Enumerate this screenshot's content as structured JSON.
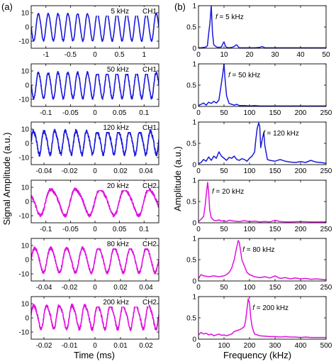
{
  "figure": {
    "panel_a_label": "(a)",
    "panel_b_label": "(b)",
    "left_ylabel": "Signal Amplitude (a.u.)",
    "left_xlabel": "Time (ms)",
    "right_ylabel": "Amplitude (a.u.)",
    "right_xlabel": "Frequency (kHz)",
    "colors": {
      "CH1": "#1a1adb",
      "CH2": "#e010e0"
    }
  },
  "chart_data": [
    {
      "panel": "a1",
      "type": "line",
      "channel": "CH1",
      "freq_label": "5 kHz",
      "channel_label": "CH1",
      "xlim": [
        -1.3,
        1.3
      ],
      "ylim": [
        -15,
        15
      ],
      "xticks": [
        -1,
        -0.5,
        0,
        0.5,
        1
      ],
      "xtick_labels": [
        "-1",
        "-0.5",
        "0",
        "0.5",
        "1"
      ],
      "yticks": [
        -10,
        0,
        10
      ],
      "ytick_labels": [
        "-10",
        "0",
        "10"
      ],
      "signal": {
        "frequency_khz": 5,
        "amplitude": 9.5,
        "offset": 0,
        "noise": 0.5,
        "harmonic": 0.05
      }
    },
    {
      "panel": "a2",
      "type": "line",
      "channel": "CH1",
      "freq_label": "50 kHz",
      "channel_label": "CH1",
      "xlim": [
        -0.13,
        0.13
      ],
      "ylim": [
        -15,
        15
      ],
      "xticks": [
        -0.1,
        -0.05,
        0,
        0.05,
        0.1
      ],
      "xtick_labels": [
        "-0.1",
        "-0.05",
        "0",
        "0.05",
        "0.1"
      ],
      "yticks": [
        -10,
        0,
        10
      ],
      "ytick_labels": [
        "-10",
        "0",
        "10"
      ],
      "signal": {
        "frequency_khz": 50,
        "amplitude": 9,
        "offset": 0,
        "noise": 0.9,
        "harmonic": 0.05
      }
    },
    {
      "panel": "a3",
      "type": "line",
      "channel": "CH1",
      "freq_label": "120 kHz",
      "channel_label": "CH1",
      "xlim": [
        -0.05,
        0.05
      ],
      "ylim": [
        -15,
        15
      ],
      "xticks": [
        -0.04,
        -0.02,
        0,
        0.02,
        0.04
      ],
      "xtick_labels": [
        "-0.04",
        "-0.02",
        "0",
        "0.02",
        "0.04"
      ],
      "yticks": [
        -10,
        0,
        10
      ],
      "ytick_labels": [
        "-10",
        "0",
        "10"
      ],
      "signal": {
        "frequency_khz": 120,
        "amplitude": 8,
        "offset": 1,
        "noise": 1.3,
        "harmonic": 0.15
      }
    },
    {
      "panel": "a4",
      "type": "line",
      "channel": "CH2",
      "freq_label": "20 kHz",
      "channel_label": "CH2",
      "xlim": [
        -0.13,
        0.13
      ],
      "ylim": [
        -15,
        15
      ],
      "xticks": [
        -0.1,
        -0.05,
        0,
        0.05,
        0.1
      ],
      "xtick_labels": [
        "-0.1",
        "-0.05",
        "0",
        "0.05",
        "0.1"
      ],
      "yticks": [
        -10,
        0,
        10
      ],
      "ytick_labels": [
        "-10",
        "0",
        "10"
      ],
      "signal": {
        "frequency_khz": 20,
        "amplitude": 9,
        "offset": 0,
        "noise": 1.1,
        "harmonic": 0.15
      }
    },
    {
      "panel": "a5",
      "type": "line",
      "channel": "CH2",
      "freq_label": "80 kHz",
      "channel_label": "CH2",
      "xlim": [
        -0.05,
        0.05
      ],
      "ylim": [
        -15,
        15
      ],
      "xticks": [
        -0.04,
        -0.02,
        0,
        0.02,
        0.04
      ],
      "xtick_labels": [
        "-0.04",
        "-0.02",
        "0",
        "0.02",
        "0.04"
      ],
      "yticks": [
        -10,
        0,
        10
      ],
      "ytick_labels": [
        "-10",
        "0",
        "10"
      ],
      "signal": {
        "frequency_khz": 80,
        "amplitude": 8.5,
        "offset": 0,
        "noise": 1.0,
        "harmonic": 0.1
      }
    },
    {
      "panel": "a6",
      "type": "line",
      "channel": "CH2",
      "freq_label": "200 kHz",
      "channel_label": "CH2",
      "xlim": [
        -0.025,
        0.025
      ],
      "ylim": [
        -15,
        15
      ],
      "xticks": [
        -0.02,
        -0.01,
        0,
        0.01,
        0.02
      ],
      "xtick_labels": [
        "-0.02",
        "-0.01",
        "0",
        "0.01",
        "0.02"
      ],
      "yticks": [
        -10,
        0,
        10
      ],
      "ytick_labels": [
        "-10",
        "0",
        "10"
      ],
      "signal": {
        "frequency_khz": 200,
        "amplitude": 8,
        "offset": 1,
        "noise": 1.2,
        "harmonic": 0.15
      }
    },
    {
      "panel": "b1",
      "type": "line",
      "channel": "CH1",
      "annotation": "f = 5 kHz",
      "xlim": [
        0,
        50
      ],
      "ylim": [
        0,
        1
      ],
      "xticks": [
        0,
        10,
        20,
        30,
        40,
        50
      ],
      "xtick_labels": [
        "0",
        "10",
        "20",
        "30",
        "40",
        "50"
      ],
      "yticks": [
        0,
        0.5,
        1
      ],
      "ytick_labels": [
        "0",
        "0.5",
        "1"
      ],
      "x": [
        0,
        1,
        2,
        3,
        3.5,
        4,
        4.5,
        5,
        5.5,
        6,
        7,
        8,
        9,
        9.5,
        10,
        10.5,
        11,
        12,
        13,
        14,
        14.5,
        15,
        15.5,
        16,
        18,
        20,
        22,
        24,
        25,
        26,
        28,
        30,
        35,
        40,
        45,
        50
      ],
      "y": [
        0.01,
        0.01,
        0.02,
        0.03,
        0.06,
        0.35,
        0.6,
        1.0,
        0.35,
        0.08,
        0.03,
        0.02,
        0.03,
        0.1,
        0.15,
        0.06,
        0.02,
        0.01,
        0.02,
        0.04,
        0.07,
        0.08,
        0.04,
        0.01,
        0.01,
        0.01,
        0.01,
        0.02,
        0.04,
        0.01,
        0.01,
        0.01,
        0.01,
        0.01,
        0.01,
        0.01
      ]
    },
    {
      "panel": "b2",
      "type": "line",
      "channel": "CH1",
      "annotation": "f = 50 kHz",
      "xlim": [
        0,
        250
      ],
      "ylim": [
        0,
        1
      ],
      "xticks": [
        0,
        50,
        100,
        150,
        200,
        250
      ],
      "xtick_labels": [
        "0",
        "50",
        "100",
        "150",
        "200",
        "250"
      ],
      "yticks": [
        0,
        0.5,
        1
      ],
      "ytick_labels": [
        "0",
        "0.5",
        "1"
      ],
      "x": [
        0,
        5,
        10,
        15,
        20,
        25,
        30,
        35,
        40,
        45,
        48,
        50,
        52,
        55,
        60,
        65,
        70,
        75,
        80,
        90,
        100,
        110,
        120,
        150,
        200,
        250
      ],
      "y": [
        0.02,
        0.05,
        0.08,
        0.03,
        0.1,
        0.07,
        0.12,
        0.08,
        0.15,
        0.55,
        0.8,
        1.0,
        0.65,
        0.25,
        0.07,
        0.05,
        0.03,
        0.05,
        0.02,
        0.02,
        0.01,
        0.02,
        0.01,
        0.01,
        0.01,
        0.01
      ]
    },
    {
      "panel": "b3",
      "type": "line",
      "channel": "CH1",
      "annotation": "f = 120 kHz",
      "xlim": [
        0,
        250
      ],
      "ylim": [
        0,
        1
      ],
      "xticks": [
        0,
        50,
        100,
        150,
        200,
        250
      ],
      "xtick_labels": [
        "0",
        "50",
        "100",
        "150",
        "200",
        "250"
      ],
      "yticks": [
        0,
        0.5,
        1
      ],
      "ytick_labels": [
        "0",
        "0.5",
        "1"
      ],
      "x": [
        0,
        5,
        10,
        15,
        20,
        25,
        30,
        35,
        40,
        45,
        50,
        55,
        60,
        65,
        70,
        75,
        80,
        85,
        90,
        95,
        100,
        105,
        110,
        112,
        115,
        118,
        120,
        122,
        125,
        128,
        130,
        135,
        140,
        150,
        160,
        170,
        180,
        190,
        200,
        210,
        220,
        230,
        240,
        250
      ],
      "y": [
        0.02,
        0.05,
        0.12,
        0.08,
        0.18,
        0.1,
        0.2,
        0.15,
        0.3,
        0.2,
        0.15,
        0.1,
        0.17,
        0.15,
        0.2,
        0.12,
        0.1,
        0.14,
        0.12,
        0.08,
        0.15,
        0.2,
        0.3,
        0.55,
        0.85,
        0.98,
        0.9,
        0.4,
        0.6,
        0.75,
        0.45,
        0.12,
        0.1,
        0.08,
        0.12,
        0.08,
        0.06,
        0.05,
        0.07,
        0.05,
        0.1,
        0.06,
        0.05,
        0.03
      ]
    },
    {
      "panel": "b4",
      "type": "line",
      "channel": "CH2",
      "annotation": "f = 20 kHz",
      "xlim": [
        0,
        250
      ],
      "ylim": [
        0,
        1
      ],
      "xticks": [
        0,
        50,
        100,
        150,
        200,
        250
      ],
      "xtick_labels": [
        "0",
        "50",
        "100",
        "150",
        "200",
        "250"
      ],
      "yticks": [
        0,
        0.5,
        1
      ],
      "ytick_labels": [
        "0",
        "0.5",
        "1"
      ],
      "x": [
        0,
        5,
        10,
        13,
        16,
        18,
        20,
        22,
        25,
        30,
        35,
        40,
        45,
        50,
        55,
        60,
        70,
        80,
        90,
        100,
        110,
        120,
        130,
        140,
        150,
        160,
        170,
        180,
        200,
        220,
        250
      ],
      "y": [
        0.03,
        0.08,
        0.15,
        0.4,
        0.75,
        0.95,
        0.7,
        0.3,
        0.12,
        0.06,
        0.05,
        0.07,
        0.04,
        0.05,
        0.03,
        0.06,
        0.04,
        0.03,
        0.05,
        0.03,
        0.04,
        0.02,
        0.03,
        0.02,
        0.06,
        0.03,
        0.02,
        0.02,
        0.03,
        0.02,
        0.02
      ]
    },
    {
      "panel": "b5",
      "type": "line",
      "channel": "CH2",
      "annotation": "f = 80 kHz",
      "xlim": [
        0,
        250
      ],
      "ylim": [
        0,
        1
      ],
      "xticks": [
        0,
        50,
        100,
        150,
        200,
        250
      ],
      "xtick_labels": [
        "0",
        "50",
        "100",
        "150",
        "200",
        "250"
      ],
      "yticks": [
        0,
        0.5,
        1
      ],
      "ytick_labels": [
        "0",
        "0.5",
        "1"
      ],
      "x": [
        0,
        5,
        10,
        20,
        30,
        40,
        50,
        55,
        60,
        65,
        70,
        75,
        78,
        80,
        82,
        85,
        90,
        95,
        100,
        110,
        120,
        130,
        140,
        150,
        160,
        170,
        180,
        190,
        200,
        210,
        220,
        230,
        240,
        250
      ],
      "y": [
        0.06,
        0.15,
        0.12,
        0.1,
        0.12,
        0.1,
        0.12,
        0.15,
        0.2,
        0.3,
        0.5,
        0.8,
        0.95,
        0.9,
        0.75,
        0.5,
        0.35,
        0.2,
        0.15,
        0.1,
        0.08,
        0.1,
        0.07,
        0.12,
        0.06,
        0.08,
        0.05,
        0.07,
        0.05,
        0.06,
        0.04,
        0.05,
        0.04,
        0.03
      ]
    },
    {
      "panel": "b6",
      "type": "line",
      "channel": "CH2",
      "annotation": "f = 200 kHz",
      "xlim": [
        0,
        500
      ],
      "ylim": [
        0,
        1
      ],
      "xticks": [
        0,
        100,
        200,
        300,
        400,
        500
      ],
      "xtick_labels": [
        "0",
        "100",
        "200",
        "300",
        "400",
        "500"
      ],
      "yticks": [
        0,
        0.5,
        1
      ],
      "ytick_labels": [
        "0",
        "0.5",
        "1"
      ],
      "x": [
        0,
        10,
        20,
        30,
        40,
        50,
        60,
        70,
        80,
        90,
        100,
        110,
        120,
        130,
        140,
        150,
        160,
        170,
        180,
        185,
        190,
        195,
        200,
        205,
        210,
        215,
        220,
        230,
        240,
        260,
        280,
        300,
        320,
        340,
        360,
        380,
        400,
        420,
        440,
        460,
        480,
        500
      ],
      "y": [
        0.1,
        0.16,
        0.12,
        0.14,
        0.1,
        0.12,
        0.08,
        0.1,
        0.12,
        0.09,
        0.1,
        0.08,
        0.1,
        0.12,
        0.18,
        0.2,
        0.22,
        0.25,
        0.3,
        0.45,
        0.7,
        0.95,
        0.85,
        0.5,
        0.3,
        0.2,
        0.12,
        0.1,
        0.08,
        0.07,
        0.06,
        0.06,
        0.05,
        0.06,
        0.05,
        0.05,
        0.04,
        0.05,
        0.04,
        0.04,
        0.04,
        0.04
      ]
    }
  ]
}
